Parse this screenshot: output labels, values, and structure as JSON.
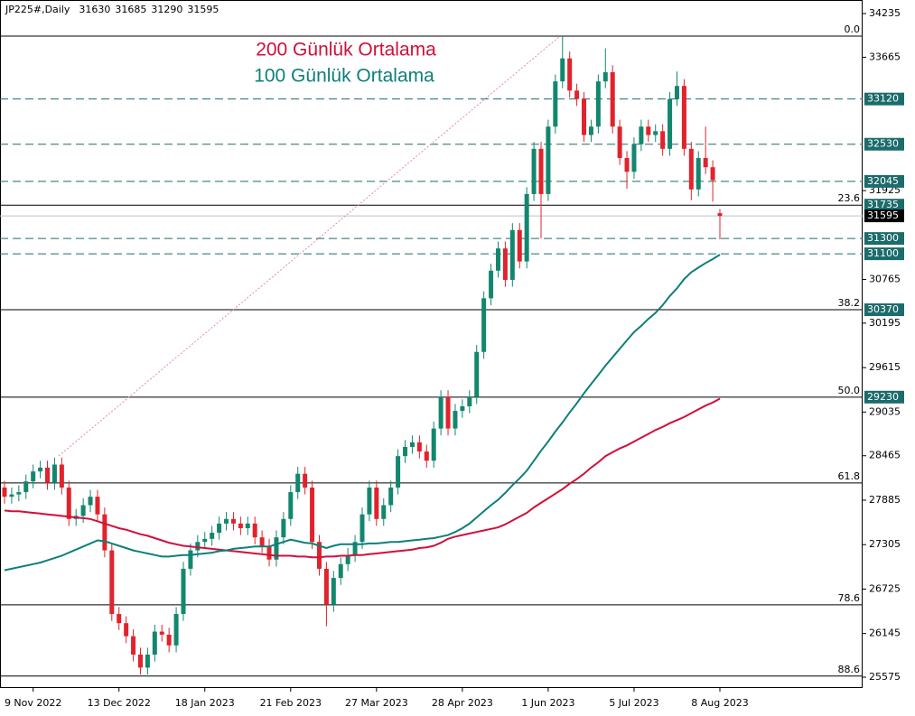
{
  "chart_data": {
    "type": "candlestick",
    "title": "JP225#,Daily",
    "x": [
      null,
      null,
      null,
      null,
      "9 Nov 2022",
      null,
      null,
      null,
      null,
      null,
      null,
      null,
      null,
      null,
      null,
      null,
      "13 Dec 2022",
      null,
      null,
      null,
      null,
      null,
      null,
      null,
      null,
      null,
      null,
      null,
      "18 Jan 2023",
      null,
      null,
      null,
      null,
      null,
      null,
      null,
      null,
      null,
      null,
      null,
      "21 Feb 2023",
      null,
      null,
      null,
      null,
      null,
      null,
      null,
      null,
      null,
      null,
      null,
      "27 Mar 2023",
      null,
      null,
      null,
      null,
      null,
      null,
      null,
      null,
      null,
      null,
      null,
      "28 Apr 2023",
      null,
      null,
      null,
      null,
      null,
      null,
      null,
      null,
      null,
      null,
      null,
      "1 Jun 2023",
      null,
      null,
      null,
      null,
      null,
      null,
      null,
      null,
      null,
      null,
      null,
      "5 Jul 2023",
      null,
      null,
      null,
      null,
      null,
      null,
      null,
      null,
      null,
      null,
      null,
      "8 Aug 2023"
    ],
    "open": [
      28050,
      27930,
      27960,
      27990,
      28130,
      28260,
      28310,
      28110,
      28350,
      28050,
      27640,
      27680,
      27820,
      27930,
      27700,
      27230,
      26400,
      26280,
      26110,
      25870,
      25700,
      25870,
      26170,
      26130,
      25990,
      26400,
      26990,
      27230,
      27340,
      27380,
      27460,
      27580,
      27640,
      27580,
      27520,
      27580,
      27400,
      27290,
      27110,
      27400,
      27640,
      27990,
      28230,
      28050,
      27340,
      26990,
      26520,
      26870,
      27050,
      27170,
      27340,
      27700,
      28050,
      27640,
      27820,
      28050,
      28460,
      28580,
      28640,
      28520,
      28400,
      28820,
      29230,
      28820,
      29050,
      29110,
      29230,
      29820,
      30520,
      30880,
      31170,
      30760,
      31410,
      31000,
      31880,
      32470,
      31880,
      32760,
      33350,
      33650,
      33230,
      33120,
      32650,
      32760,
      33350,
      33470,
      32760,
      32350,
      32170,
      32530,
      32760,
      32650,
      32700,
      32470,
      33120,
      33290,
      32470,
      31940,
      32350,
      32230,
      31630
    ],
    "high": [
      28140,
      28050,
      28080,
      28220,
      28350,
      28400,
      28400,
      28440,
      28440,
      28140,
      27770,
      27910,
      28020,
      28020,
      27790,
      27320,
      26490,
      26370,
      26200,
      25960,
      25960,
      26260,
      26260,
      26220,
      26490,
      27080,
      27320,
      27430,
      27470,
      27550,
      27670,
      27730,
      27730,
      27670,
      27670,
      27670,
      27490,
      27380,
      27490,
      27730,
      28080,
      28320,
      28320,
      28140,
      27430,
      27080,
      26960,
      27140,
      27260,
      27430,
      27790,
      28140,
      28140,
      27910,
      28140,
      28550,
      28670,
      28730,
      28730,
      28610,
      28910,
      29320,
      29320,
      29140,
      29200,
      29320,
      29910,
      30610,
      30970,
      31260,
      31260,
      31500,
      31500,
      31970,
      32560,
      32560,
      32850,
      33440,
      33950,
      33740,
      33320,
      33210,
      32850,
      33440,
      33780,
      33560,
      32850,
      32440,
      32620,
      32850,
      32850,
      32790,
      32790,
      33210,
      33480,
      33380,
      32560,
      32440,
      32760,
      32320,
      31685
    ],
    "low": [
      27840,
      27840,
      27870,
      27900,
      28040,
      28170,
      28020,
      28020,
      27960,
      27550,
      27550,
      27590,
      27730,
      27610,
      27140,
      26310,
      26190,
      26020,
      25780,
      25610,
      25610,
      25780,
      26040,
      25900,
      25900,
      26310,
      26900,
      27140,
      27250,
      27290,
      27370,
      27490,
      27490,
      27430,
      27430,
      27310,
      27200,
      27020,
      27020,
      27310,
      27550,
      27900,
      27960,
      27250,
      26900,
      26240,
      26430,
      26780,
      26960,
      27080,
      27250,
      27610,
      27550,
      27550,
      27730,
      27960,
      28370,
      28490,
      28430,
      28310,
      28310,
      28730,
      28730,
      28730,
      28960,
      29020,
      29140,
      29730,
      30430,
      30790,
      30670,
      30670,
      30910,
      30910,
      31790,
      31300,
      31790,
      32670,
      33260,
      33140,
      33030,
      32560,
      32560,
      32670,
      33260,
      32670,
      32260,
      31950,
      32080,
      32440,
      32560,
      32560,
      32380,
      32380,
      33030,
      32380,
      31800,
      31850,
      32140,
      31780,
      31290
    ],
    "close": [
      27930,
      27960,
      27990,
      28130,
      28260,
      28310,
      28110,
      28350,
      28050,
      27640,
      27680,
      27820,
      27930,
      27700,
      27230,
      26400,
      26280,
      26110,
      25870,
      25700,
      25870,
      26170,
      26130,
      25990,
      26400,
      26990,
      27230,
      27340,
      27380,
      27460,
      27580,
      27640,
      27580,
      27520,
      27580,
      27400,
      27290,
      27110,
      27400,
      27640,
      27990,
      28230,
      28050,
      27340,
      26990,
      26520,
      26870,
      27050,
      27170,
      27340,
      27700,
      28050,
      27640,
      27820,
      28050,
      28460,
      28580,
      28640,
      28520,
      28400,
      28820,
      29230,
      28820,
      29050,
      29110,
      29230,
      29820,
      30520,
      30880,
      31170,
      30760,
      31410,
      31000,
      31880,
      32470,
      31880,
      32760,
      33350,
      33650,
      33230,
      33120,
      32650,
      32760,
      33350,
      33470,
      32760,
      32350,
      32170,
      32530,
      32760,
      32650,
      32700,
      32470,
      33120,
      33290,
      32470,
      31940,
      32350,
      32230,
      32060,
      31595
    ],
    "up_color": "#12876e",
    "down_color": "#e0232c",
    "series": [
      {
        "name": "200 Günlük Ortalama",
        "color": "#d0103a",
        "values": [
          27750,
          27740,
          27740,
          27730,
          27720,
          27710,
          27700,
          27690,
          27680,
          27670,
          27660,
          27650,
          27640,
          27610,
          27580,
          27550,
          27520,
          27500,
          27470,
          27440,
          27420,
          27390,
          27360,
          27330,
          27310,
          27290,
          27280,
          27270,
          27260,
          27250,
          27240,
          27230,
          27220,
          27210,
          27200,
          27190,
          27180,
          27170,
          27160,
          27160,
          27160,
          27150,
          27150,
          27140,
          27140,
          27150,
          27150,
          27160,
          27160,
          27170,
          27170,
          27180,
          27190,
          27200,
          27210,
          27220,
          27230,
          27240,
          27260,
          27270,
          27290,
          27330,
          27380,
          27410,
          27430,
          27450,
          27470,
          27490,
          27510,
          27530,
          27570,
          27620,
          27670,
          27720,
          27790,
          27850,
          27910,
          27970,
          28030,
          28100,
          28160,
          28230,
          28310,
          28380,
          28460,
          28510,
          28560,
          28600,
          28650,
          28700,
          28750,
          28800,
          28840,
          28890,
          28930,
          28970,
          29020,
          29070,
          29120,
          29160,
          29210
        ]
      },
      {
        "name": "100 Günlük Ortalama",
        "color": "#0e7f7a",
        "values": [
          26970,
          26990,
          27010,
          27030,
          27050,
          27070,
          27100,
          27130,
          27160,
          27200,
          27240,
          27280,
          27320,
          27360,
          27350,
          27320,
          27290,
          27260,
          27230,
          27210,
          27190,
          27170,
          27150,
          27150,
          27160,
          27170,
          27170,
          27180,
          27190,
          27200,
          27220,
          27230,
          27250,
          27260,
          27270,
          27280,
          27280,
          27280,
          27310,
          27340,
          27370,
          27350,
          27330,
          27320,
          27290,
          27260,
          27290,
          27310,
          27310,
          27310,
          27310,
          27320,
          27320,
          27330,
          27340,
          27340,
          27350,
          27360,
          27370,
          27380,
          27390,
          27410,
          27430,
          27470,
          27520,
          27580,
          27660,
          27740,
          27820,
          27890,
          27980,
          28080,
          28170,
          28270,
          28400,
          28530,
          28650,
          28780,
          28900,
          29030,
          29150,
          29280,
          29400,
          29520,
          29640,
          29750,
          29860,
          29970,
          30080,
          30160,
          30250,
          30330,
          30430,
          30550,
          30650,
          30770,
          30860,
          30920,
          30980,
          31030,
          31090
        ]
      }
    ],
    "ylim": [
      25434,
      34412
    ],
    "yticks": [
      34235,
      33665,
      31925,
      30765,
      30195,
      29615,
      29035,
      28465,
      27885,
      27305,
      26725,
      26145,
      25575
    ],
    "levels": [
      33120,
      32530,
      32045,
      31300,
      31100
    ],
    "level_color": "#1d6b6b",
    "fib_levels": [
      {
        "value": 33940,
        "label": "0.0"
      },
      {
        "value": 31735,
        "label": "23.6",
        "price_box": true
      },
      {
        "value": 30370,
        "label": "38.2",
        "price_box": true
      },
      {
        "value": 29230,
        "label": "50.0",
        "price_box": true
      },
      {
        "value": 28110,
        "label": "61.8"
      },
      {
        "value": 26520,
        "label": "78.6"
      },
      {
        "value": 25590,
        "label": "88.6"
      }
    ]
  }
}
